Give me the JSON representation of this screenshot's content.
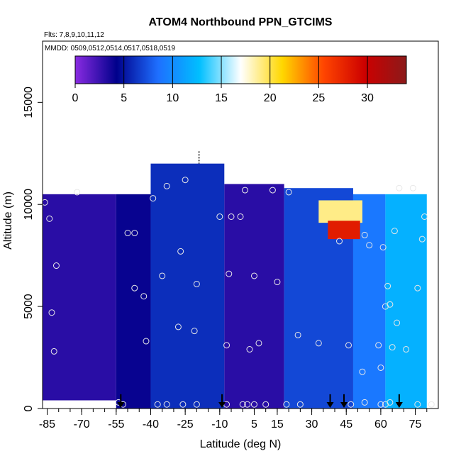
{
  "chart_data": {
    "type": "heatmap",
    "title": "ATOM4 Northbound PPN_GTCIMS",
    "subtitle_flights": "Flts: 7,8,9,10,11,12",
    "subtitle_dates": "MMDD: 0509,0512,0514,0517,0518,0519",
    "xlabel": "Latitude (deg N)",
    "ylabel": "Altitude (m)",
    "xlim": [
      -87,
      85
    ],
    "ylim": [
      0,
      18000
    ],
    "x_ticks": [
      -85,
      -70,
      -55,
      -40,
      -25,
      -10,
      5,
      15,
      30,
      45,
      60,
      75
    ],
    "y_ticks": [
      0,
      5000,
      10000,
      15000
    ],
    "x_tick_labels": [
      "-85",
      "-70",
      "-55",
      "-40",
      "-25",
      "-10",
      "5",
      "15",
      "30",
      "45",
      "60",
      "75"
    ],
    "y_tick_labels": [
      "0",
      "5000",
      "10000",
      "15000"
    ],
    "colorbar": {
      "min": 0,
      "max": 34,
      "ticks": [
        0,
        5,
        10,
        15,
        20,
        25,
        30
      ],
      "tick_labels": [
        "0",
        "5",
        "10",
        "15",
        "20",
        "25",
        "30"
      ],
      "colors": [
        "#8a2be2",
        "#00008b",
        "#1e6fff",
        "#00bfff",
        "#ffffff",
        "#ffd700",
        "#ff4500",
        "#cc0000",
        "#8b1a1a"
      ]
    },
    "field_regions": [
      {
        "lat": [
          -87,
          -55
        ],
        "alt": [
          400,
          10500
        ],
        "value": 3
      },
      {
        "lat": [
          -55,
          -40
        ],
        "alt": [
          0,
          10500
        ],
        "value": 4
      },
      {
        "lat": [
          -40,
          -8
        ],
        "alt": [
          0,
          12000
        ],
        "value": 6
      },
      {
        "lat": [
          -8,
          18
        ],
        "alt": [
          0,
          11000
        ],
        "value": 3
      },
      {
        "lat": [
          18,
          48
        ],
        "alt": [
          0,
          10800
        ],
        "value": 7
      },
      {
        "lat": [
          48,
          62
        ],
        "alt": [
          0,
          10500
        ],
        "value": 9
      },
      {
        "lat": [
          62,
          80
        ],
        "alt": [
          0,
          10500
        ],
        "value": 12
      },
      {
        "lat": [
          33,
          52
        ],
        "alt": [
          9100,
          10200
        ],
        "value": 19
      },
      {
        "lat": [
          37,
          51
        ],
        "alt": [
          8300,
          9200
        ],
        "value": 28
      }
    ],
    "sample_points": [
      {
        "lat": -86,
        "alt": 10100
      },
      {
        "lat": -84,
        "alt": 9300
      },
      {
        "lat": -83,
        "alt": 4700
      },
      {
        "lat": -82,
        "alt": 2800
      },
      {
        "lat": -81,
        "alt": 7000
      },
      {
        "lat": -72,
        "alt": 10600
      },
      {
        "lat": -54,
        "alt": 300
      },
      {
        "lat": -50,
        "alt": 8600
      },
      {
        "lat": -47,
        "alt": 8600
      },
      {
        "lat": -47,
        "alt": 5900
      },
      {
        "lat": -43,
        "alt": 5500
      },
      {
        "lat": -42,
        "alt": 3300
      },
      {
        "lat": -39,
        "alt": 10300
      },
      {
        "lat": -35,
        "alt": 6500
      },
      {
        "lat": -33,
        "alt": 10900
      },
      {
        "lat": -28,
        "alt": 4000
      },
      {
        "lat": -27,
        "alt": 7700
      },
      {
        "lat": -25,
        "alt": 11200
      },
      {
        "lat": -21,
        "alt": 3800
      },
      {
        "lat": -20,
        "alt": 6100
      },
      {
        "lat": -10,
        "alt": 9400
      },
      {
        "lat": -7,
        "alt": 3100
      },
      {
        "lat": -6,
        "alt": 6600
      },
      {
        "lat": -5,
        "alt": 9400
      },
      {
        "lat": -1,
        "alt": 9400
      },
      {
        "lat": 1,
        "alt": 10700
      },
      {
        "lat": 3,
        "alt": 2900
      },
      {
        "lat": 5,
        "alt": 6500
      },
      {
        "lat": 7,
        "alt": 3200
      },
      {
        "lat": 13,
        "alt": 10700
      },
      {
        "lat": 15,
        "alt": 6200
      },
      {
        "lat": 20,
        "alt": 10600
      },
      {
        "lat": 24,
        "alt": 3600
      },
      {
        "lat": 33,
        "alt": 3200
      },
      {
        "lat": 42,
        "alt": 8200
      },
      {
        "lat": 46,
        "alt": 3100
      },
      {
        "lat": 52,
        "alt": 1800
      },
      {
        "lat": 53,
        "alt": 8500
      },
      {
        "lat": 55,
        "alt": 8000
      },
      {
        "lat": 59,
        "alt": 3100
      },
      {
        "lat": 60,
        "alt": 2000
      },
      {
        "lat": 61,
        "alt": 7900
      },
      {
        "lat": 62,
        "alt": 5000
      },
      {
        "lat": 63,
        "alt": 6000
      },
      {
        "lat": 64,
        "alt": 5100
      },
      {
        "lat": 65,
        "alt": 3000
      },
      {
        "lat": 66,
        "alt": 8700
      },
      {
        "lat": 67,
        "alt": 4200
      },
      {
        "lat": 68,
        "alt": 10800
      },
      {
        "lat": 71,
        "alt": 2900
      },
      {
        "lat": 74,
        "alt": 10800
      },
      {
        "lat": 76,
        "alt": 5900
      },
      {
        "lat": 78,
        "alt": 8300
      },
      {
        "lat": 79,
        "alt": 9400
      },
      {
        "lat": -52,
        "alt": 200
      },
      {
        "lat": -37,
        "alt": 200
      },
      {
        "lat": -33,
        "alt": 200
      },
      {
        "lat": -26,
        "alt": 200
      },
      {
        "lat": -20,
        "alt": 200
      },
      {
        "lat": -7,
        "alt": 200
      },
      {
        "lat": 0,
        "alt": 200
      },
      {
        "lat": 2,
        "alt": 200
      },
      {
        "lat": 5,
        "alt": 200
      },
      {
        "lat": 10,
        "alt": 200
      },
      {
        "lat": 19,
        "alt": 200
      },
      {
        "lat": 25,
        "alt": 200
      },
      {
        "lat": 47,
        "alt": 200
      },
      {
        "lat": 53,
        "alt": 300
      },
      {
        "lat": 60,
        "alt": 200
      },
      {
        "lat": 62,
        "alt": 200
      },
      {
        "lat": 64,
        "alt": 300
      },
      {
        "lat": 76,
        "alt": 200
      },
      {
        "lat": 82,
        "alt": 200
      }
    ],
    "profile_markers_lat": [
      -53,
      -9,
      38,
      44,
      68
    ],
    "dashed_marker": {
      "lat": -19,
      "alt": [
        12000,
        12600
      ]
    }
  }
}
